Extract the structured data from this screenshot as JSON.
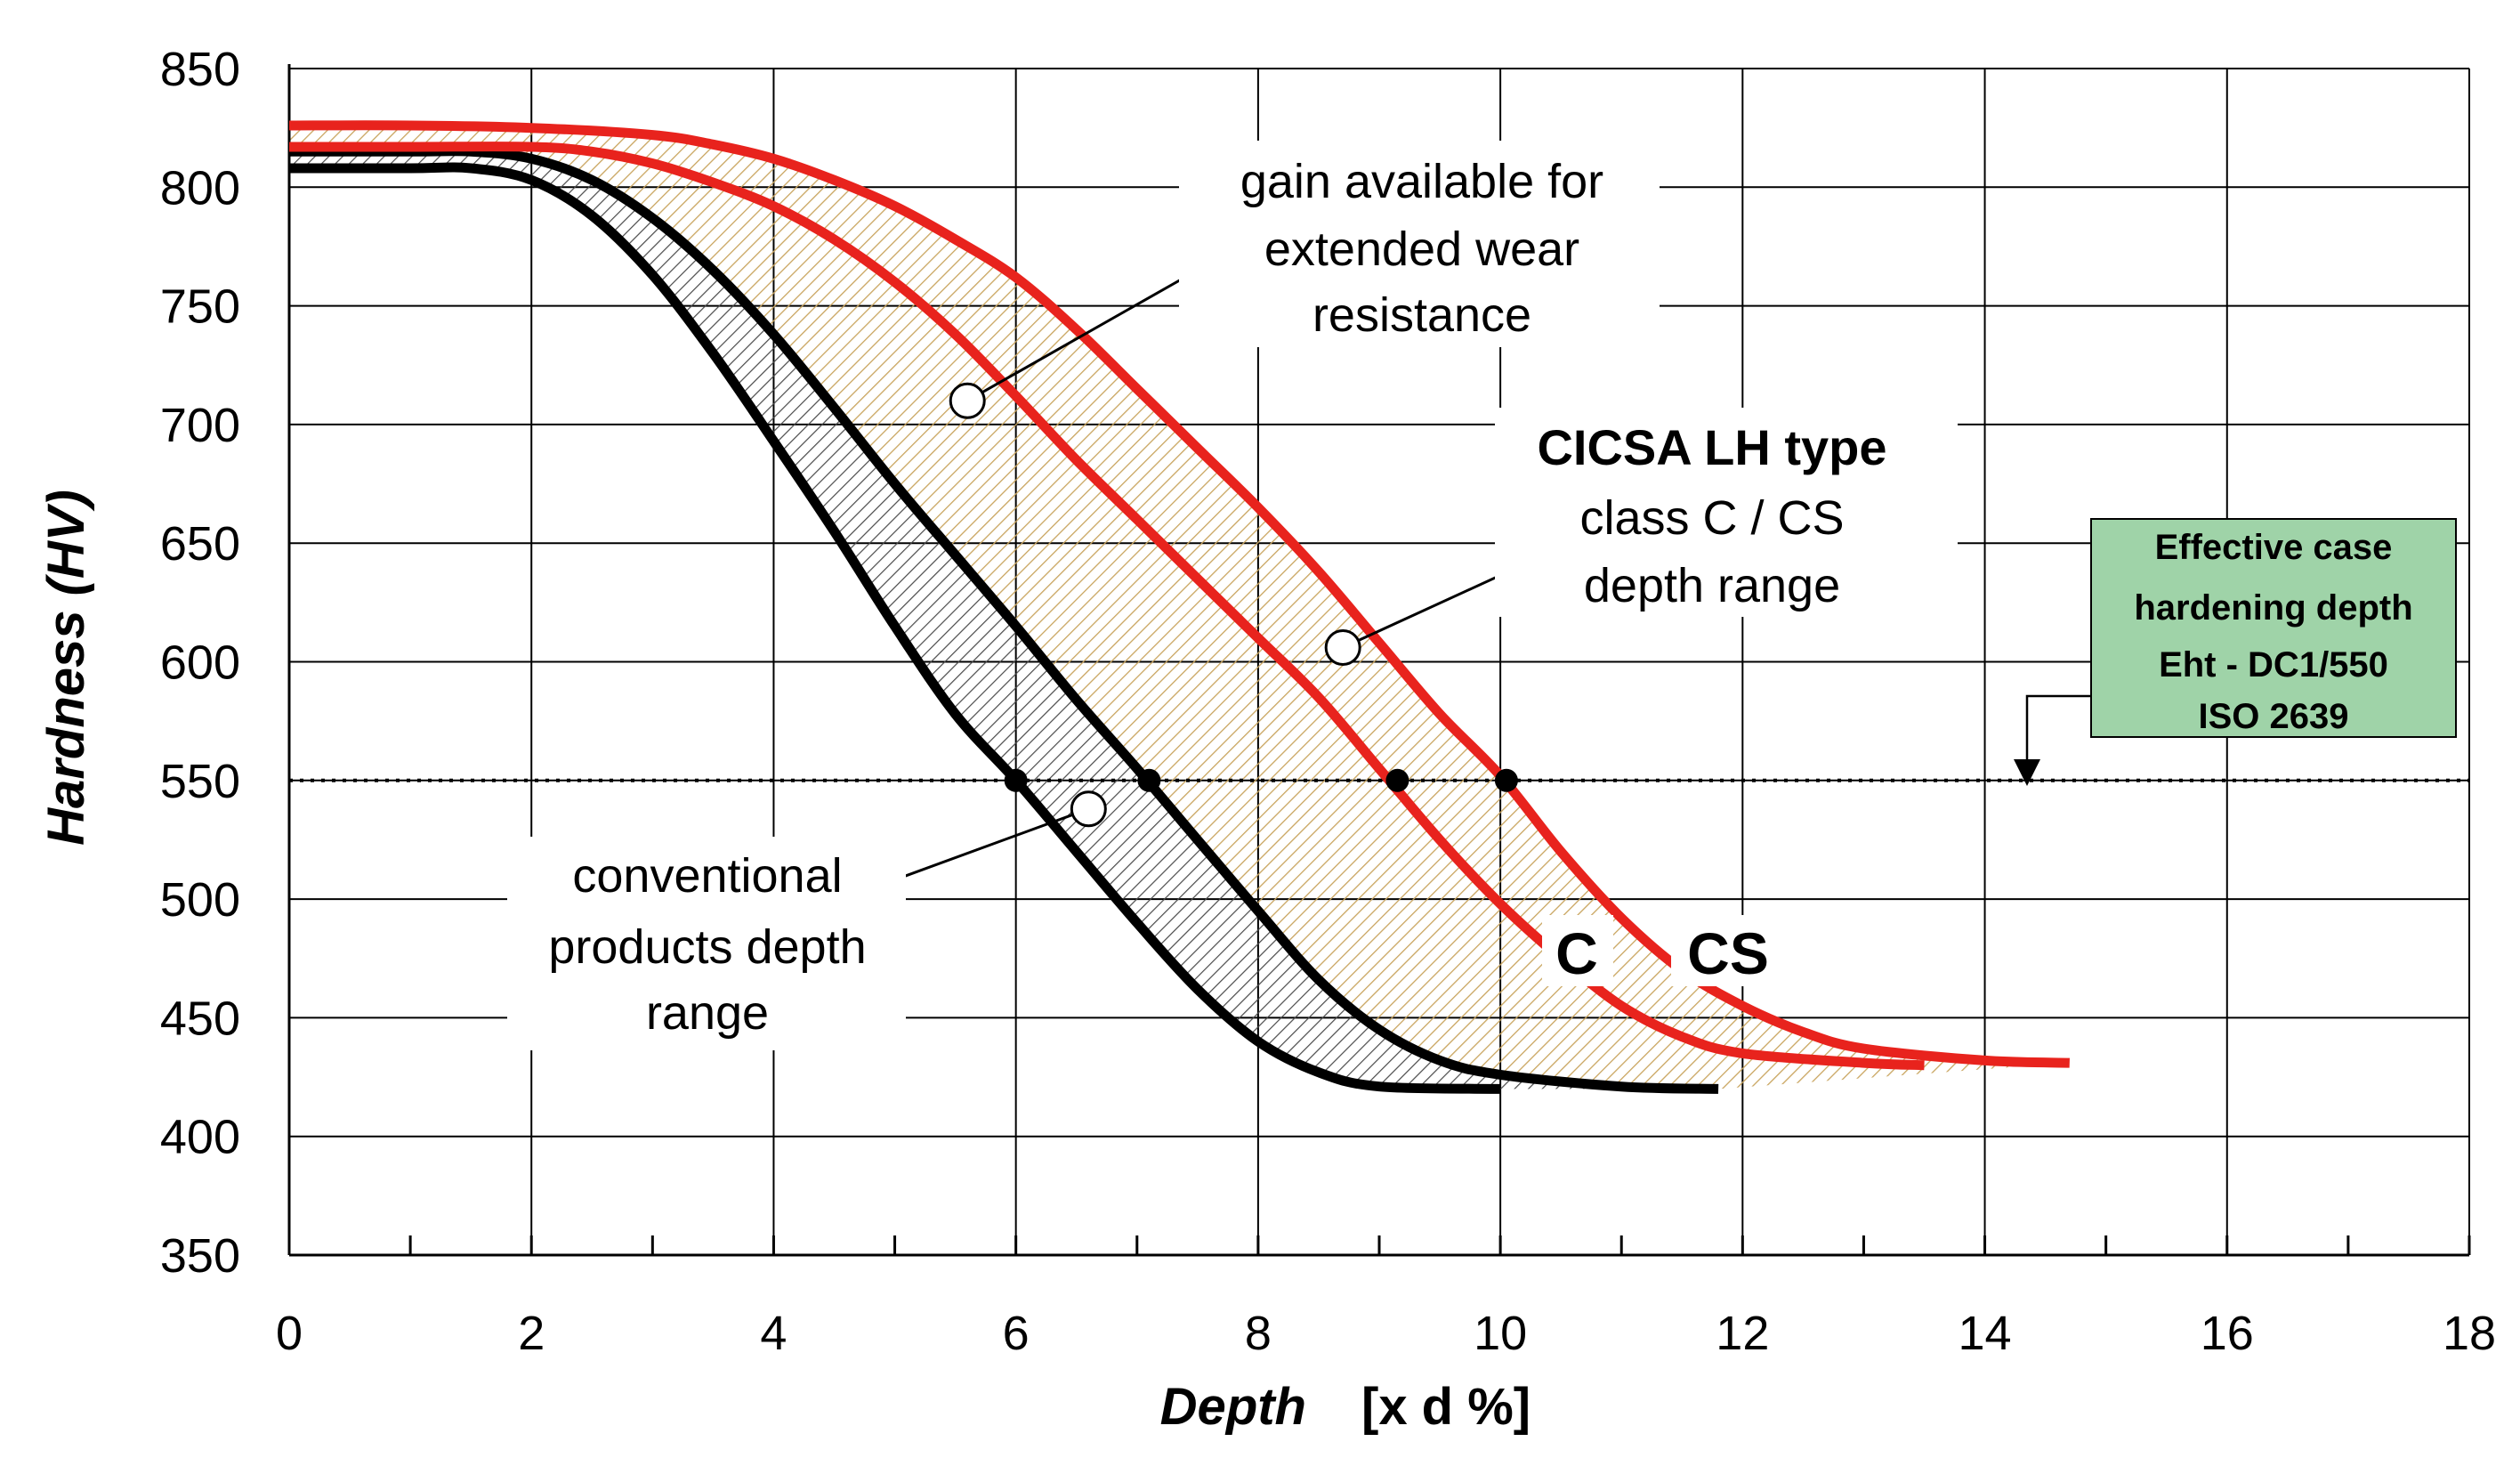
{
  "chart_data": {
    "type": "line",
    "xlabel": "Depth",
    "xlabel_unit": "[x d %]",
    "ylabel": "Hardness (HV)",
    "xlim": [
      0,
      18
    ],
    "ylim": [
      350,
      850
    ],
    "xticks": [
      0,
      2,
      4,
      6,
      8,
      10,
      12,
      14,
      16,
      18
    ],
    "yticks": [
      350,
      400,
      450,
      500,
      550,
      600,
      650,
      700,
      750,
      800,
      850
    ],
    "grid": true,
    "threshold": {
      "y": 550,
      "style": "dotted"
    },
    "series": [
      {
        "color": "#000000",
        "group": "conventional",
        "values": [
          [
            0,
            808
          ],
          [
            1,
            808
          ],
          [
            1.5,
            808
          ],
          [
            2,
            803
          ],
          [
            2.5,
            788
          ],
          [
            3,
            763
          ],
          [
            3.5,
            730
          ],
          [
            4,
            693
          ],
          [
            4.5,
            655
          ],
          [
            5,
            615
          ],
          [
            5.5,
            578
          ],
          [
            6,
            550
          ],
          [
            6.5,
            520
          ],
          [
            7,
            490
          ],
          [
            7.5,
            462
          ],
          [
            8,
            440
          ],
          [
            8.5,
            427
          ],
          [
            9,
            421
          ],
          [
            10,
            420
          ]
        ]
      },
      {
        "color": "#000000",
        "group": "conventional",
        "values": [
          [
            0,
            815
          ],
          [
            1,
            815
          ],
          [
            1.5,
            815
          ],
          [
            2,
            812
          ],
          [
            2.5,
            803
          ],
          [
            3,
            787
          ],
          [
            3.5,
            765
          ],
          [
            4,
            738
          ],
          [
            4.5,
            707
          ],
          [
            5,
            675
          ],
          [
            5.5,
            645
          ],
          [
            6,
            615
          ],
          [
            6.5,
            584
          ],
          [
            7,
            555
          ],
          [
            7.5,
            525
          ],
          [
            8,
            495
          ],
          [
            8.5,
            466
          ],
          [
            9,
            445
          ],
          [
            9.5,
            432
          ],
          [
            10,
            426
          ],
          [
            11,
            421
          ],
          [
            11.8,
            420
          ]
        ]
      },
      {
        "color": "#e8231d",
        "group": "CICSA LH",
        "label": "C",
        "values": [
          [
            0,
            817
          ],
          [
            1,
            817
          ],
          [
            2,
            817
          ],
          [
            2.5,
            815
          ],
          [
            3,
            810
          ],
          [
            3.5,
            802
          ],
          [
            4,
            792
          ],
          [
            4.5,
            778
          ],
          [
            5,
            760
          ],
          [
            5.5,
            738
          ],
          [
            6,
            712
          ],
          [
            6.5,
            685
          ],
          [
            7,
            660
          ],
          [
            7.5,
            635
          ],
          [
            8,
            610
          ],
          [
            8.5,
            585
          ],
          [
            9,
            555
          ],
          [
            9.5,
            525
          ],
          [
            10,
            498
          ],
          [
            10.5,
            475
          ],
          [
            11,
            455
          ],
          [
            11.5,
            442
          ],
          [
            12,
            435
          ],
          [
            13,
            431
          ],
          [
            13.5,
            430
          ]
        ]
      },
      {
        "color": "#e8231d",
        "group": "CICSA LH",
        "label": "CS",
        "values": [
          [
            0,
            826
          ],
          [
            1,
            826
          ],
          [
            2,
            825
          ],
          [
            3,
            822
          ],
          [
            3.5,
            818
          ],
          [
            4,
            812
          ],
          [
            4.5,
            803
          ],
          [
            5,
            792
          ],
          [
            5.5,
            778
          ],
          [
            6,
            762
          ],
          [
            6.5,
            740
          ],
          [
            7,
            715
          ],
          [
            7.5,
            690
          ],
          [
            8,
            665
          ],
          [
            8.5,
            638
          ],
          [
            9,
            608
          ],
          [
            9.5,
            578
          ],
          [
            10,
            552
          ],
          [
            10.5,
            520
          ],
          [
            11,
            492
          ],
          [
            11.5,
            470
          ],
          [
            12,
            455
          ],
          [
            12.5,
            444
          ],
          [
            13,
            437
          ],
          [
            14,
            432
          ],
          [
            14.7,
            431
          ]
        ]
      }
    ],
    "markers_filled": [
      [
        6,
        550
      ],
      [
        7.1,
        550
      ],
      [
        9.15,
        550
      ],
      [
        10.05,
        550
      ]
    ],
    "markers_open": [
      [
        5.6,
        710
      ],
      [
        6.6,
        538
      ],
      [
        8.7,
        606
      ]
    ],
    "annotations": {
      "gain": [
        "gain available for",
        "extended wear",
        "resistance"
      ],
      "cicsa_title": "CICSA LH type",
      "cicsa_sub": [
        "class C / CS",
        "depth range"
      ],
      "conventional": [
        "conventional",
        "products depth",
        "range"
      ],
      "label_c": "C",
      "label_cs": "CS",
      "box": [
        "Effective case",
        "hardening depth",
        "Eht - DC1/550",
        "ISO 2639"
      ]
    },
    "colors": {
      "conventional_line": "#000000",
      "cicsa_line": "#e8231d",
      "conventional_fill": "#5a5a5a",
      "cicsa_fill": "#d3b370",
      "box_fill": "#9fd3a8"
    }
  }
}
